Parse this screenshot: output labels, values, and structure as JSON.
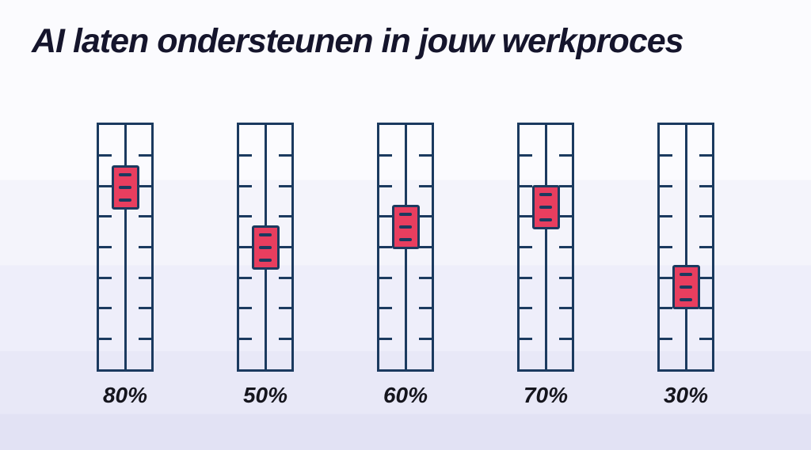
{
  "title": "AI laten ondersteunen in jouw werkproces",
  "chart_data": {
    "type": "bar",
    "variant": "vertical-slider-infographic",
    "title": "AI laten ondersteunen in jouw werkproces",
    "categories": [
      "80%",
      "50%",
      "60%",
      "70%",
      "30%"
    ],
    "values": [
      80,
      50,
      60,
      70,
      30
    ],
    "value_unit": "%",
    "ylim": [
      0,
      100
    ],
    "orientation": "vertical",
    "ticks_per_track": 7,
    "grid": false,
    "legend": "none"
  },
  "colors": {
    "outline_navy": "#1b3a5f",
    "handle_red": "#e83e5f",
    "title_text": "#15152c",
    "label_text": "#15151d",
    "background_top": "#fbfbfe",
    "background_bottom": "#e2e2f4"
  }
}
